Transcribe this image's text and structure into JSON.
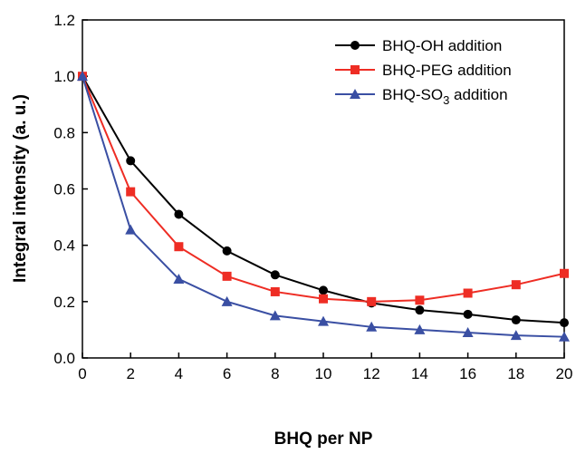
{
  "chart_data": {
    "type": "line",
    "xlabel": "BHQ per NP",
    "ylabel": "Integral intensity (a. u.)",
    "xlim": [
      0,
      20
    ],
    "ylim": [
      0,
      1.2
    ],
    "x_ticks": [
      0,
      2,
      4,
      6,
      8,
      10,
      12,
      14,
      16,
      18,
      20
    ],
    "y_ticks": [
      "0.0",
      "0.2",
      "0.4",
      "0.6",
      "0.8",
      "1.0",
      "1.2"
    ],
    "x": [
      0,
      2,
      4,
      6,
      8,
      10,
      12,
      14,
      16,
      18,
      20
    ],
    "grid": false,
    "legend_position": "top-right",
    "series": [
      {
        "name": "BHQ-OH addition",
        "legend_main": "BHQ-OH addition",
        "color": "#000000",
        "marker": "circle",
        "values": [
          1.0,
          0.7,
          0.51,
          0.38,
          0.295,
          0.24,
          0.195,
          0.17,
          0.155,
          0.135,
          0.125
        ]
      },
      {
        "name": "BHQ-PEG addition",
        "legend_main": "BHQ-PEG addition",
        "color": "#ee2d24",
        "marker": "square",
        "values": [
          1.0,
          0.59,
          0.395,
          0.29,
          0.235,
          0.21,
          0.2,
          0.205,
          0.23,
          0.26,
          0.3
        ]
      },
      {
        "name": "BHQ-SO3 addition",
        "legend_main": "BHQ-SO",
        "legend_sub": "3",
        "legend_tail": " addition",
        "color": "#3a4fa3",
        "marker": "triangle",
        "values": [
          1.0,
          0.455,
          0.28,
          0.2,
          0.15,
          0.13,
          0.11,
          0.1,
          0.09,
          0.08,
          0.075
        ]
      }
    ]
  }
}
